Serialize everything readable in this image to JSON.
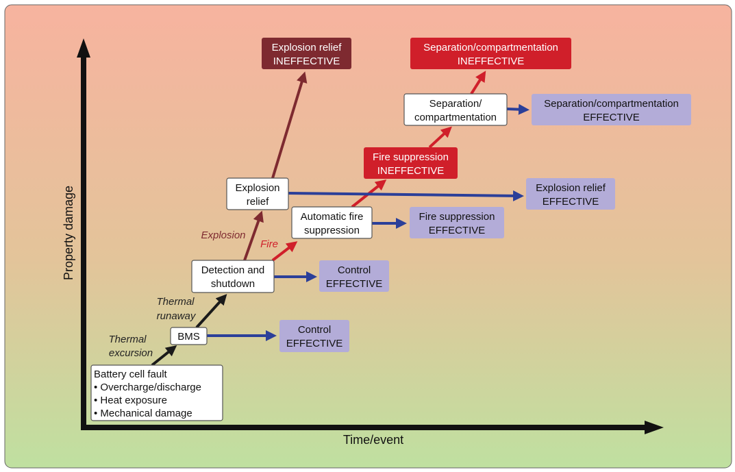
{
  "colors": {
    "background_top": "#f7b39f",
    "background_bottom": "#bfe0a0",
    "effective": "#b3acd8",
    "explosion": "#7e2a30",
    "fire": "#d01f2a",
    "effective_arrow": "#2b3f99",
    "progression_arrow": "#1a1a1a"
  },
  "axes": {
    "y_label": "Property damage",
    "x_label": "Time/event"
  },
  "nodes": {
    "battery": {
      "title": "Battery cell fault",
      "items": [
        "• Overcharge/discharge",
        "• Heat exposure",
        "• Mechanical damage"
      ]
    },
    "bms": {
      "label": "BMS"
    },
    "detection": {
      "line1": "Detection and",
      "line2": "shutdown"
    },
    "explosion_relief": {
      "line1": "Explosion",
      "line2": "relief"
    },
    "auto_fire": {
      "line1": "Automatic fire",
      "line2": "suppression"
    },
    "separation": {
      "line1": "Separation/",
      "line2": "compartmentation"
    }
  },
  "outcomes": {
    "control_bms": {
      "line1": "Control",
      "line2": "EFFECTIVE"
    },
    "control_detection": {
      "line1": "Control",
      "line2": "EFFECTIVE"
    },
    "fire_effective": {
      "line1": "Fire suppression",
      "line2": "EFFECTIVE"
    },
    "explosion_effective": {
      "line1": "Explosion relief",
      "line2": "EFFECTIVE"
    },
    "separation_effective": {
      "line1": "Separation/compartmentation",
      "line2": "EFFECTIVE"
    },
    "explosion_ineffective": {
      "line1": "Explosion relief",
      "line2": "INEFFECTIVE"
    },
    "fire_ineffective": {
      "line1": "Fire suppression",
      "line2": "INEFFECTIVE"
    },
    "separation_ineffective": {
      "line1": "Separation/compartmentation",
      "line2": "INEFFECTIVE"
    }
  },
  "edge_labels": {
    "thermal_excursion": [
      "Thermal",
      "excursion"
    ],
    "thermal_runaway": [
      "Thermal",
      "runaway"
    ],
    "explosion": "Explosion",
    "fire": "Fire"
  }
}
